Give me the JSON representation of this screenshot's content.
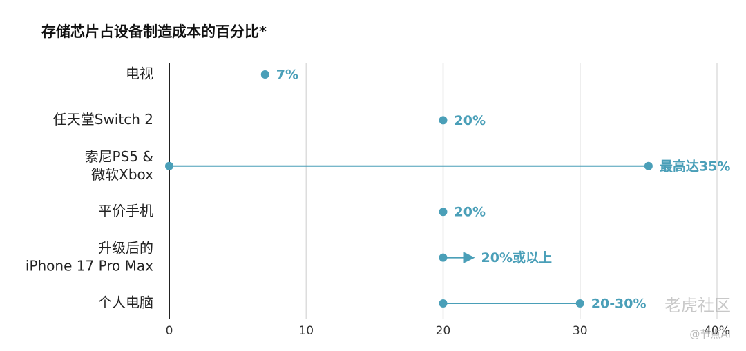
{
  "chart_data": {
    "type": "dot-range",
    "title": "存储芯片占设备制造成本的百分比*",
    "categories": [
      "电视",
      "任天堂Switch 2",
      "索尼PS5 &\n微软Xbox",
      "平价手机",
      "升级后的\niPhone 17 Pro Max",
      "个人电脑"
    ],
    "values": [
      7,
      20,
      35,
      20,
      20,
      30
    ],
    "value_labels": [
      "7%",
      "20%",
      "最高达35%",
      "20%",
      "20%或以上",
      "20-30%"
    ],
    "range_start": [
      null,
      null,
      0,
      null,
      null,
      20
    ],
    "open_ended": [
      false,
      false,
      false,
      false,
      true,
      false
    ],
    "color": "#4a9fb8",
    "xlim": [
      0,
      40
    ],
    "xticks": [
      0,
      10,
      20,
      30,
      {
        "value": 40,
        "label": "40%"
      }
    ],
    "grid": true,
    "watermark": "老虎社区",
    "credit": "@节点AI"
  }
}
